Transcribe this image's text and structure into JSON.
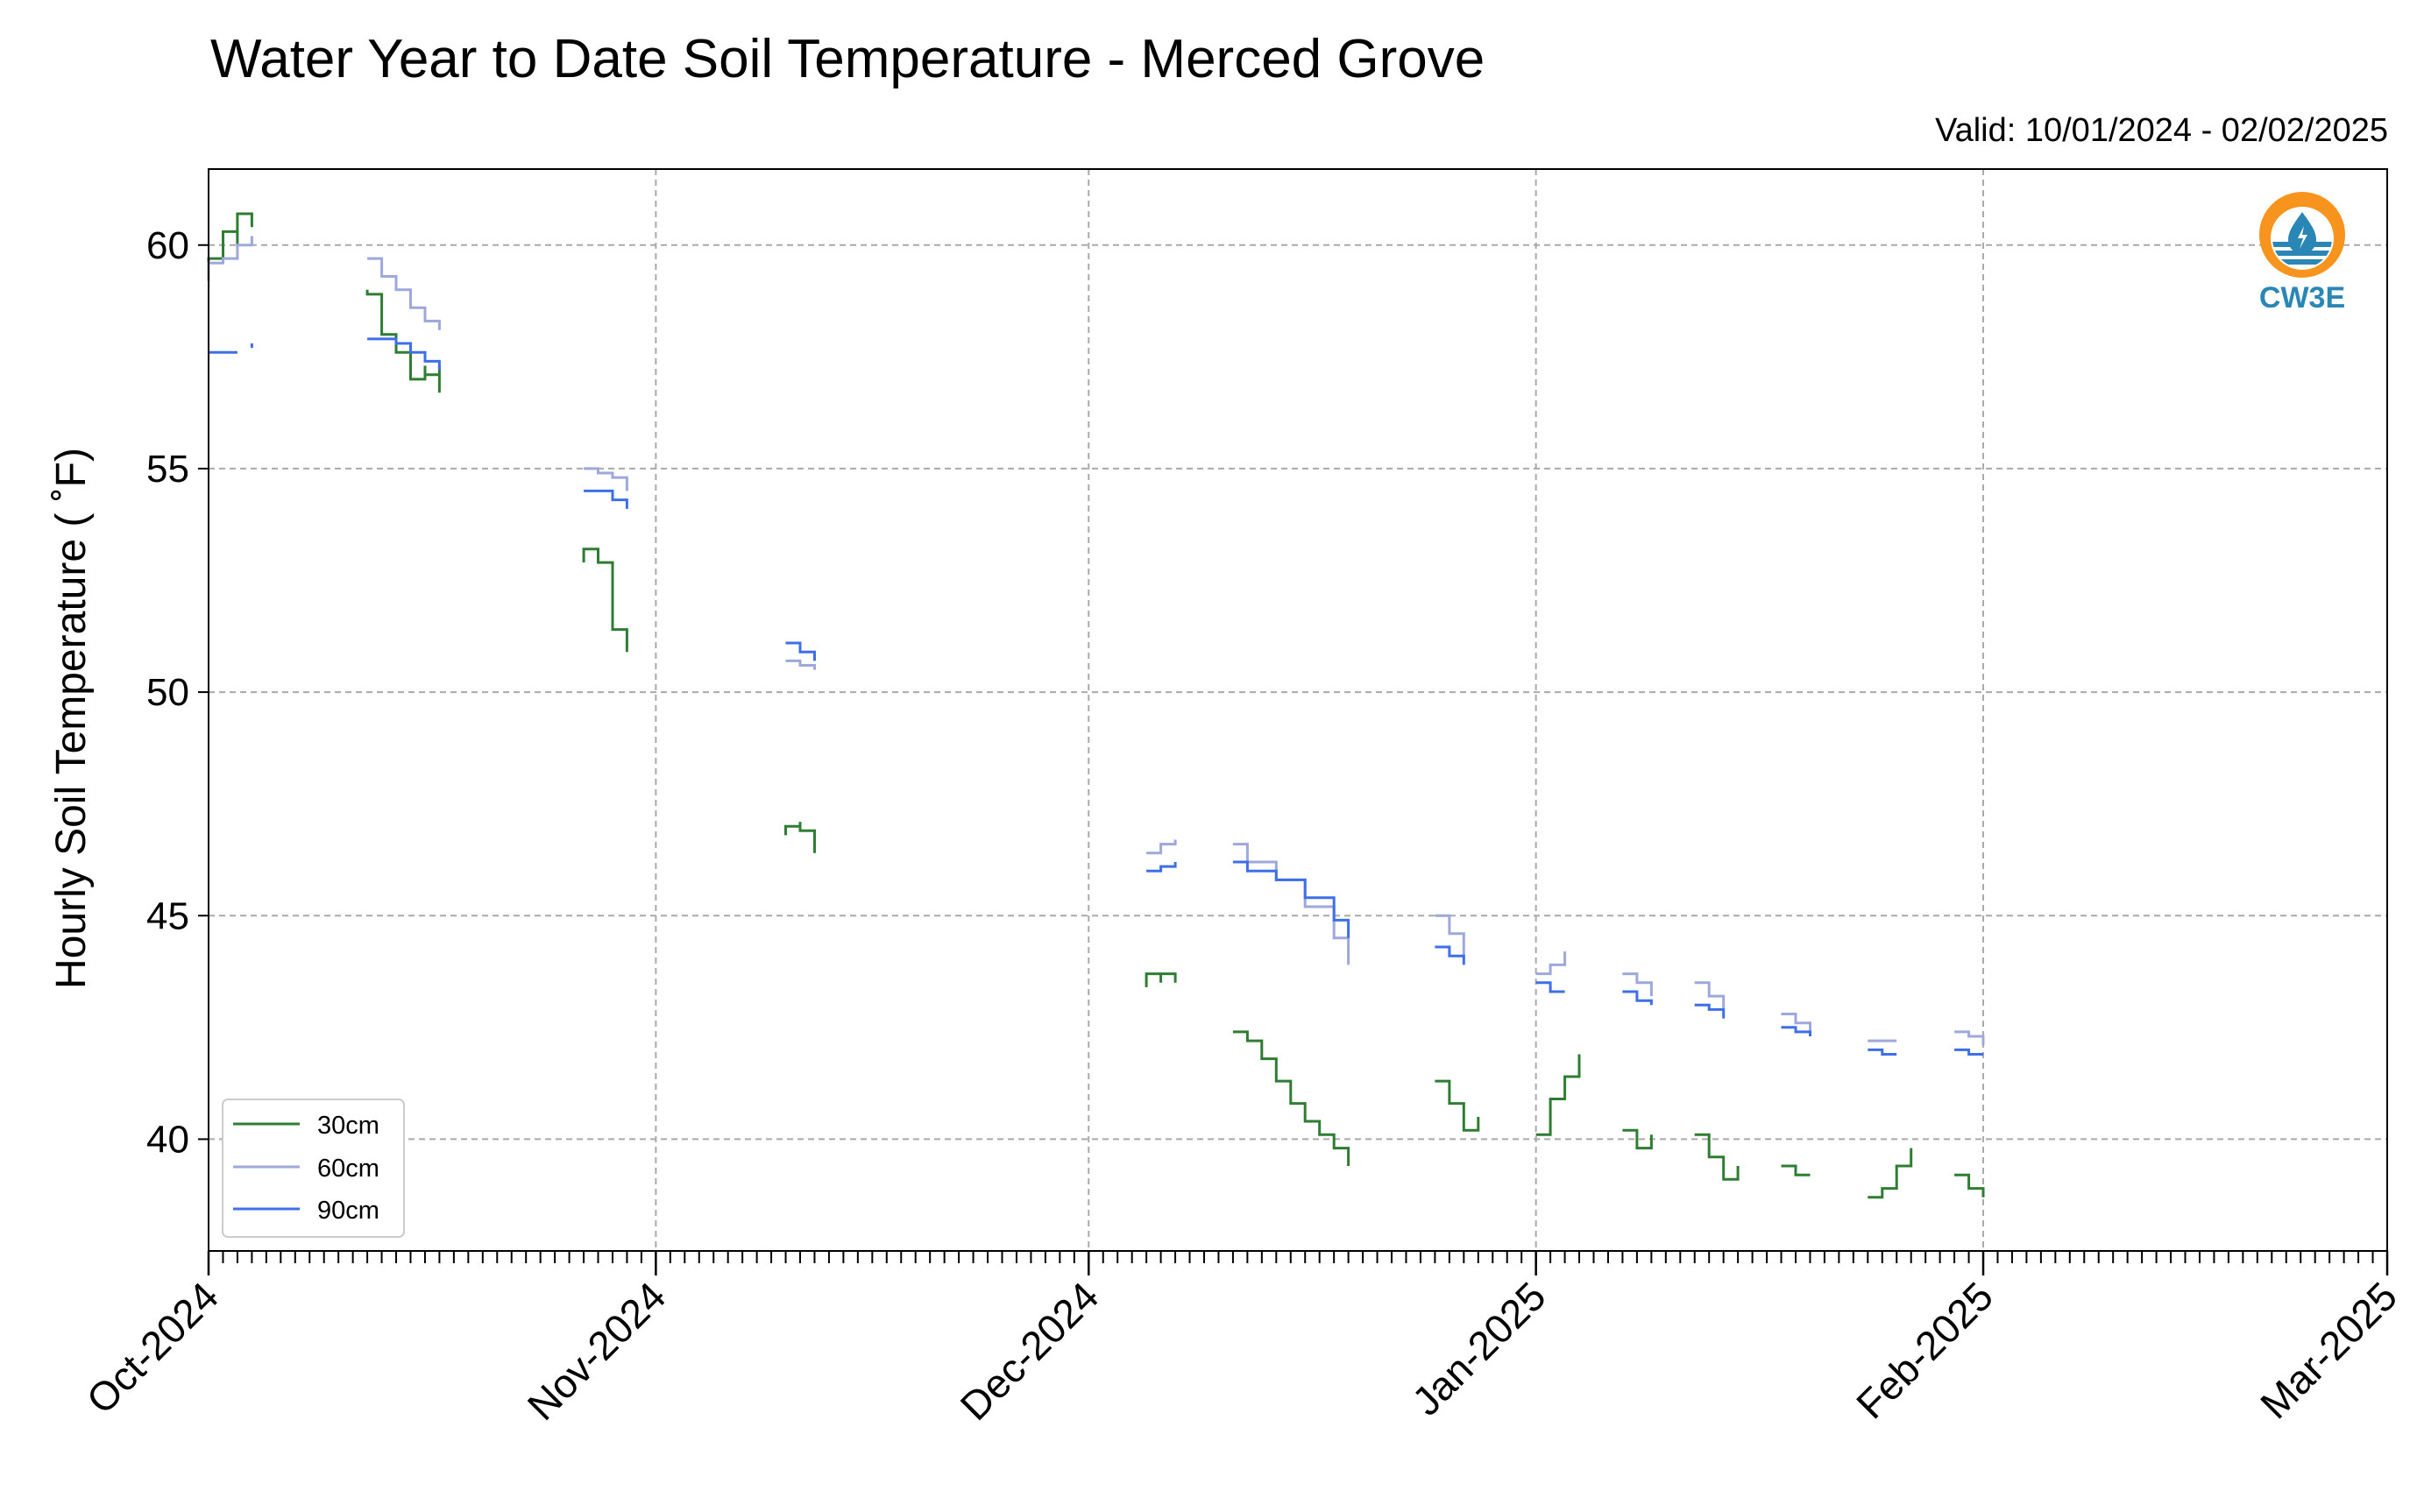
{
  "chart_data": {
    "type": "line",
    "title": "Water Year to Date Soil Temperature - Merced Grove",
    "subtitle": "Valid: 10/01/2024 - 02/02/2025",
    "xlabel": "",
    "ylabel": "Hourly Soil Temperature ( ˚F)",
    "x_type": "date",
    "xlim": [
      "2024-10-01",
      "2025-03-01"
    ],
    "ylim": [
      37.5,
      61.7
    ],
    "x_ticks": [
      {
        "date": "2024-10-01",
        "label": "Oct-2024"
      },
      {
        "date": "2024-11-01",
        "label": "Nov-2024"
      },
      {
        "date": "2024-12-01",
        "label": "Dec-2024"
      },
      {
        "date": "2025-01-01",
        "label": "Jan-2025"
      },
      {
        "date": "2025-02-01",
        "label": "Feb-2025"
      },
      {
        "date": "2025-03-01",
        "label": "Mar-2025"
      }
    ],
    "y_ticks": [
      40,
      45,
      50,
      55,
      60
    ],
    "grid": true,
    "legend_position": "lower-left",
    "series": [
      {
        "name": "30cm",
        "color": "#2e7d32",
        "segments": [
          [
            [
              "2024-10-01",
              59.3
            ],
            [
              "2024-10-01",
              59.7
            ],
            [
              "2024-10-02",
              59.7
            ],
            [
              "2024-10-02",
              59.6
            ],
            [
              "2024-10-02",
              60.0
            ],
            [
              "2024-10-02",
              60.3
            ],
            [
              "2024-10-03",
              60.3
            ],
            [
              "2024-10-03",
              60.0
            ],
            [
              "2024-10-03",
              60.4
            ],
            [
              "2024-10-03",
              60.7
            ],
            [
              "2024-10-04",
              60.7
            ],
            [
              "2024-10-04",
              60.4
            ],
            [
              "2024-10-04",
              60.6
            ]
          ],
          [
            [
              "2024-10-12",
              59.0
            ],
            [
              "2024-10-12",
              58.9
            ],
            [
              "2024-10-13",
              58.6
            ],
            [
              "2024-10-13",
              58.3
            ],
            [
              "2024-10-13",
              58.0
            ],
            [
              "2024-10-14",
              57.8
            ],
            [
              "2024-10-14",
              57.6
            ],
            [
              "2024-10-15",
              57.3
            ],
            [
              "2024-10-15",
              57.0
            ],
            [
              "2024-10-16",
              57.3
            ],
            [
              "2024-10-16",
              57.1
            ],
            [
              "2024-10-17",
              57.3
            ],
            [
              "2024-10-17",
              56.9
            ],
            [
              "2024-10-17",
              56.7
            ]
          ],
          [
            [
              "2024-10-27",
              52.9
            ],
            [
              "2024-10-27",
              53.2
            ],
            [
              "2024-10-28",
              53.0
            ],
            [
              "2024-10-28",
              53.1
            ],
            [
              "2024-10-28",
              52.9
            ],
            [
              "2024-10-29",
              52.5
            ],
            [
              "2024-10-29",
              52.0
            ],
            [
              "2024-10-29",
              51.4
            ],
            [
              "2024-10-30",
              50.9
            ]
          ],
          [
            [
              "2024-11-10",
              46.8
            ],
            [
              "2024-11-10",
              47.0
            ],
            [
              "2024-11-11",
              47.1
            ],
            [
              "2024-11-11",
              46.9
            ],
            [
              "2024-11-12",
              46.7
            ],
            [
              "2024-11-12",
              46.4
            ]
          ],
          [
            [
              "2024-12-05",
              43.4
            ],
            [
              "2024-12-05",
              43.7
            ],
            [
              "2024-12-06",
              43.5
            ],
            [
              "2024-12-06",
              43.7
            ],
            [
              "2024-12-07",
              43.5
            ],
            [
              "2024-12-07",
              43.7
            ]
          ],
          [
            [
              "2024-12-11",
              42.4
            ],
            [
              "2024-12-12",
              42.2
            ],
            [
              "2024-12-13",
              41.8
            ],
            [
              "2024-12-14",
              41.3
            ],
            [
              "2024-12-15",
              40.8
            ],
            [
              "2024-12-16",
              40.4
            ],
            [
              "2024-12-17",
              40.1
            ],
            [
              "2024-12-18",
              39.8
            ],
            [
              "2024-12-19",
              39.6
            ],
            [
              "2024-12-19",
              39.4
            ]
          ],
          [
            [
              "2024-12-25",
              41.3
            ],
            [
              "2024-12-26",
              40.8
            ],
            [
              "2024-12-27",
              40.2
            ],
            [
              "2024-12-28",
              40.5
            ]
          ],
          [
            [
              "2025-01-01",
              40.1
            ],
            [
              "2025-01-02",
              40.9
            ],
            [
              "2025-01-03",
              41.4
            ],
            [
              "2025-01-04",
              41.9
            ]
          ],
          [
            [
              "2025-01-07",
              40.2
            ],
            [
              "2025-01-08",
              39.8
            ],
            [
              "2025-01-09",
              40.1
            ]
          ],
          [
            [
              "2025-01-12",
              40.1
            ],
            [
              "2025-01-13",
              39.6
            ],
            [
              "2025-01-14",
              39.1
            ],
            [
              "2025-01-15",
              39.4
            ]
          ],
          [
            [
              "2025-01-18",
              39.4
            ],
            [
              "2025-01-19",
              39.2
            ],
            [
              "2025-01-20",
              39.2
            ]
          ],
          [
            [
              "2025-01-24",
              38.7
            ],
            [
              "2025-01-25",
              38.9
            ],
            [
              "2025-01-26",
              39.4
            ],
            [
              "2025-01-27",
              39.8
            ]
          ],
          [
            [
              "2025-01-30",
              39.2
            ],
            [
              "2025-01-31",
              38.9
            ],
            [
              "2025-02-01",
              38.7
            ]
          ]
        ]
      },
      {
        "name": "60cm",
        "color": "#9fa8da",
        "segments": [
          [
            [
              "2024-10-01",
              59.2
            ],
            [
              "2024-10-01",
              59.6
            ],
            [
              "2024-10-02",
              59.6
            ],
            [
              "2024-10-02",
              59.7
            ],
            [
              "2024-10-03",
              59.8
            ],
            [
              "2024-10-03",
              60.0
            ],
            [
              "2024-10-04",
              60.2
            ]
          ],
          [
            [
              "2024-10-12",
              59.7
            ],
            [
              "2024-10-13",
              59.3
            ],
            [
              "2024-10-14",
              59.0
            ],
            [
              "2024-10-15",
              58.6
            ],
            [
              "2024-10-16",
              58.3
            ],
            [
              "2024-10-17",
              58.1
            ]
          ],
          [
            [
              "2024-10-27",
              55.0
            ],
            [
              "2024-10-28",
              54.9
            ],
            [
              "2024-10-29",
              54.8
            ],
            [
              "2024-10-30",
              54.5
            ]
          ],
          [
            [
              "2024-11-10",
              50.7
            ],
            [
              "2024-11-11",
              50.6
            ],
            [
              "2024-11-12",
              50.5
            ]
          ],
          [
            [
              "2024-12-05",
              46.4
            ],
            [
              "2024-12-06",
              46.6
            ],
            [
              "2024-12-07",
              46.7
            ]
          ],
          [
            [
              "2024-12-11",
              46.6
            ],
            [
              "2024-12-12",
              46.2
            ],
            [
              "2024-12-14",
              45.8
            ],
            [
              "2024-12-16",
              45.2
            ],
            [
              "2024-12-18",
              44.5
            ],
            [
              "2024-12-19",
              43.9
            ]
          ],
          [
            [
              "2024-12-25",
              45.0
            ],
            [
              "2024-12-26",
              44.6
            ],
            [
              "2024-12-27",
              44.1
            ]
          ],
          [
            [
              "2025-01-01",
              43.7
            ],
            [
              "2025-01-02",
              43.9
            ],
            [
              "2025-01-03",
              44.2
            ]
          ],
          [
            [
              "2025-01-07",
              43.7
            ],
            [
              "2025-01-08",
              43.5
            ],
            [
              "2025-01-09",
              43.2
            ]
          ],
          [
            [
              "2025-01-12",
              43.5
            ],
            [
              "2025-01-13",
              43.2
            ],
            [
              "2025-01-14",
              42.9
            ]
          ],
          [
            [
              "2025-01-18",
              42.8
            ],
            [
              "2025-01-19",
              42.6
            ],
            [
              "2025-01-20",
              42.4
            ]
          ],
          [
            [
              "2025-01-24",
              42.2
            ],
            [
              "2025-01-25",
              42.2
            ],
            [
              "2025-01-26",
              42.2
            ]
          ],
          [
            [
              "2025-01-30",
              42.4
            ],
            [
              "2025-01-31",
              42.3
            ],
            [
              "2025-02-01",
              42.1
            ]
          ]
        ]
      },
      {
        "name": "90cm",
        "color": "#3f6fe8",
        "segments": [
          [
            [
              "2024-10-01",
              57.6
            ],
            [
              "2024-10-03",
              57.6
            ]
          ],
          [
            [
              "2024-10-04",
              57.7
            ],
            [
              "2024-10-04",
              57.8
            ]
          ],
          [
            [
              "2024-10-12",
              57.9
            ],
            [
              "2024-10-13",
              57.9
            ],
            [
              "2024-10-14",
              57.8
            ],
            [
              "2024-10-15",
              57.6
            ],
            [
              "2024-10-16",
              57.4
            ],
            [
              "2024-10-17",
              57.2
            ]
          ],
          [
            [
              "2024-10-27",
              54.5
            ],
            [
              "2024-10-28",
              54.5
            ],
            [
              "2024-10-29",
              54.3
            ],
            [
              "2024-10-30",
              54.1
            ]
          ],
          [
            [
              "2024-11-10",
              51.1
            ],
            [
              "2024-11-11",
              50.9
            ],
            [
              "2024-11-12",
              50.7
            ]
          ],
          [
            [
              "2024-12-05",
              46.0
            ],
            [
              "2024-12-06",
              46.1
            ],
            [
              "2024-12-07",
              46.2
            ]
          ],
          [
            [
              "2024-12-11",
              46.2
            ],
            [
              "2024-12-12",
              46.0
            ],
            [
              "2024-12-14",
              45.8
            ],
            [
              "2024-12-16",
              45.4
            ],
            [
              "2024-12-18",
              44.9
            ],
            [
              "2024-12-19",
              44.5
            ]
          ],
          [
            [
              "2024-12-25",
              44.3
            ],
            [
              "2024-12-26",
              44.1
            ],
            [
              "2024-12-27",
              43.9
            ]
          ],
          [
            [
              "2025-01-01",
              43.5
            ],
            [
              "2025-01-02",
              43.3
            ],
            [
              "2025-01-03",
              43.3
            ]
          ],
          [
            [
              "2025-01-07",
              43.3
            ],
            [
              "2025-01-08",
              43.1
            ],
            [
              "2025-01-09",
              43.0
            ]
          ],
          [
            [
              "2025-01-12",
              43.0
            ],
            [
              "2025-01-13",
              42.9
            ],
            [
              "2025-01-14",
              42.7
            ]
          ],
          [
            [
              "2025-01-18",
              42.5
            ],
            [
              "2025-01-19",
              42.4
            ],
            [
              "2025-01-20",
              42.3
            ]
          ],
          [
            [
              "2025-01-24",
              42.0
            ],
            [
              "2025-01-25",
              41.9
            ],
            [
              "2025-01-26",
              41.9
            ]
          ],
          [
            [
              "2025-01-30",
              42.0
            ],
            [
              "2025-01-31",
              41.9
            ],
            [
              "2025-02-01",
              41.9
            ]
          ]
        ]
      }
    ]
  },
  "logo": {
    "text": "CW3E",
    "accent_color": "#f7941d",
    "brand_color": "#2a86b4",
    "icon": "water-drop-sun-icon"
  }
}
